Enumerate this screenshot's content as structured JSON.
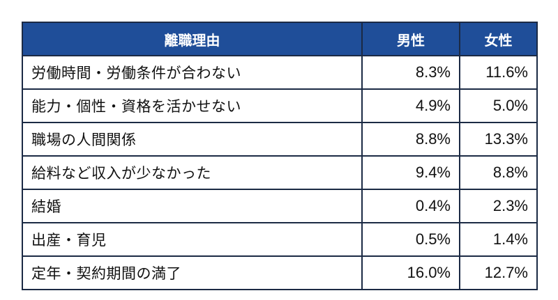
{
  "chart_data": {
    "type": "table",
    "columns": [
      "離職理由",
      "男性",
      "女性"
    ],
    "rows": [
      {
        "reason": "労働時間・労働条件が合わない",
        "male": "8.3%",
        "female": "11.6%"
      },
      {
        "reason": "能力・個性・資格を活かせない",
        "male": "4.9%",
        "female": "5.0%"
      },
      {
        "reason": "職場の人間関係",
        "male": "8.8%",
        "female": "13.3%"
      },
      {
        "reason": "給料など収入が少なかった",
        "male": "9.4%",
        "female": "8.8%"
      },
      {
        "reason": "結婚",
        "male": "0.4%",
        "female": "2.3%"
      },
      {
        "reason": "出産・育児",
        "male": "0.5%",
        "female": "1.4%"
      },
      {
        "reason": "定年・契約期間の満了",
        "male": "16.0%",
        "female": "12.7%"
      }
    ],
    "colors": {
      "header_bg": "#1f4e99",
      "header_text": "#ffffff",
      "border": "#1b2a44"
    }
  }
}
